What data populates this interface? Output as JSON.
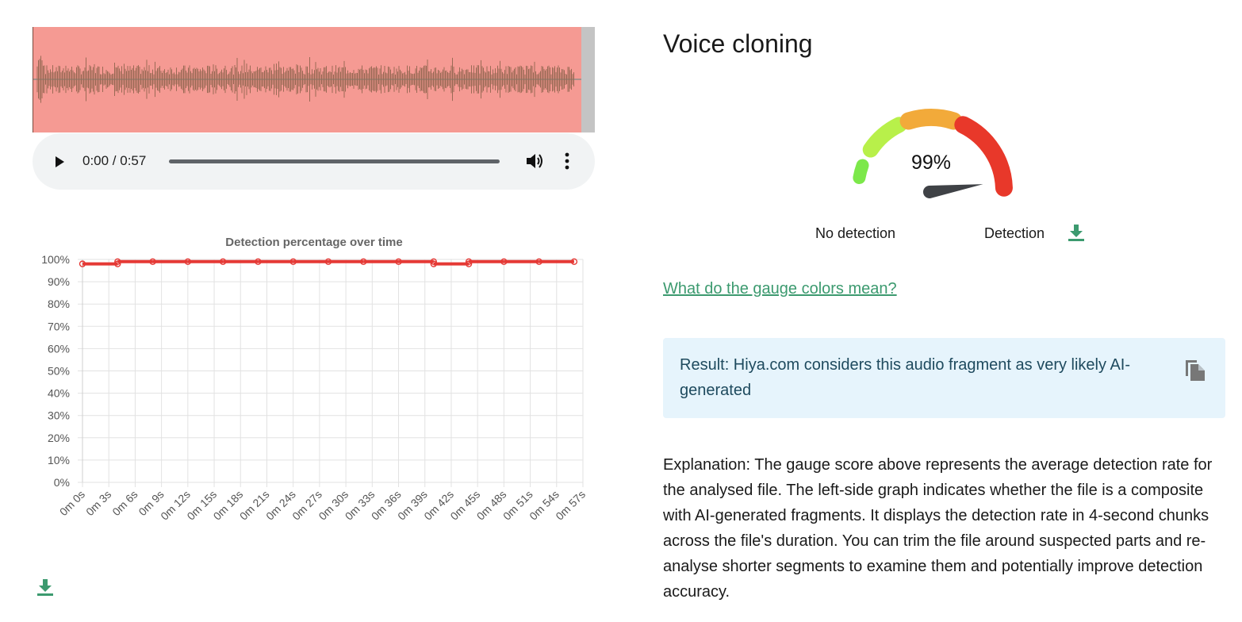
{
  "player": {
    "time": "0:00 / 0:57",
    "progress": 0
  },
  "chart_data": {
    "type": "line",
    "title": "Detection percentage over time",
    "x": [
      "0m 0s",
      "0m 3s",
      "0m 6s",
      "0m 9s",
      "0m 12s",
      "0m 15s",
      "0m 18s",
      "0m 21s",
      "0m 24s",
      "0m 27s",
      "0m 30s",
      "0m 33s",
      "0m 36s",
      "0m 39s",
      "0m 42s",
      "0m 45s",
      "0m 48s",
      "0m 51s",
      "0m 54s",
      "0m 57s"
    ],
    "y_ticks": [
      "0%",
      "10%",
      "20%",
      "30%",
      "40%",
      "50%",
      "60%",
      "70%",
      "80%",
      "90%",
      "100%"
    ],
    "ylim": [
      0,
      100
    ],
    "grid": true,
    "series": [
      {
        "color": "#e53935",
        "steps": [
          [
            0,
            4,
            98
          ],
          [
            4,
            8,
            99
          ],
          [
            8,
            12,
            99
          ],
          [
            12,
            16,
            99
          ],
          [
            16,
            20,
            99
          ],
          [
            20,
            24,
            99
          ],
          [
            24,
            28,
            99
          ],
          [
            28,
            32,
            99
          ],
          [
            32,
            36,
            99
          ],
          [
            36,
            40,
            99
          ],
          [
            40,
            44,
            98
          ],
          [
            44,
            48,
            99
          ],
          [
            48,
            52,
            99
          ],
          [
            52,
            56,
            99
          ]
        ],
        "points": [
          [
            0,
            98
          ],
          [
            4,
            98
          ],
          [
            4,
            99
          ],
          [
            8,
            99
          ],
          [
            12,
            99
          ],
          [
            16,
            99
          ],
          [
            20,
            99
          ],
          [
            24,
            99
          ],
          [
            28,
            99
          ],
          [
            32,
            99
          ],
          [
            36,
            99
          ],
          [
            40,
            99
          ],
          [
            40,
            98
          ],
          [
            44,
            98
          ],
          [
            44,
            99
          ],
          [
            48,
            99
          ],
          [
            52,
            99
          ],
          [
            56,
            99
          ]
        ]
      }
    ]
  },
  "gauge": {
    "value_text": "99%",
    "value": 99,
    "label_left": "No detection",
    "label_right": "Detection",
    "colors": [
      "#7ce84a",
      "#b8f04a",
      "#f2aa3a",
      "#e8382a"
    ]
  },
  "section_title": "Voice cloning",
  "gauge_colors_link": "What do the gauge colors mean?",
  "result": {
    "text": "Result: Hiya.com considers this audio fragment as very likely AI-generated"
  },
  "explanation": "Explanation: The gauge score above represents the average detection rate for the analysed file. The left-side graph indicates whether the file is a composite with AI-generated fragments. It displays the detection rate in 4-second chunks across the file's duration. You can trim the file around suspected parts and re-analyse shorter segments to examine them and potentially improve detection accuracy.",
  "icons": {
    "download": "download-icon",
    "copy": "copy-icon",
    "play": "play-icon",
    "volume": "volume-icon",
    "more": "more-vert-icon"
  },
  "accent_color": "#3c9a6f"
}
